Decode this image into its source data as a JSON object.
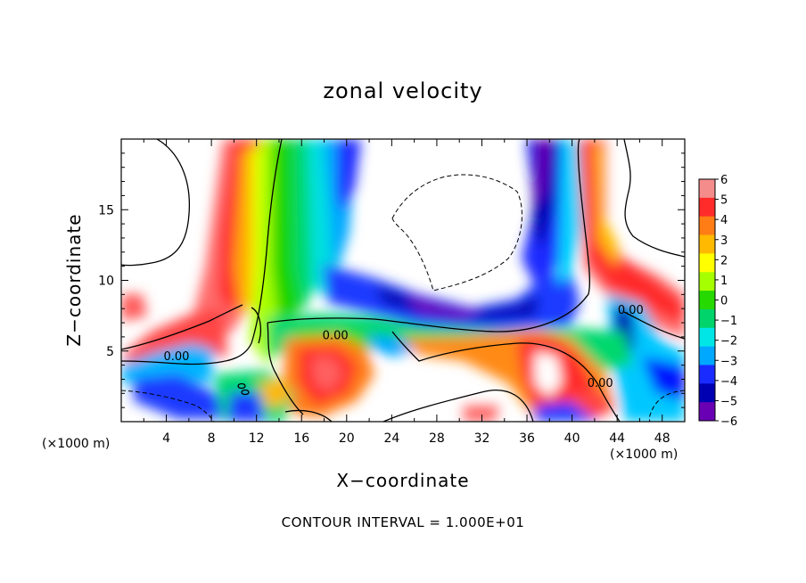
{
  "chart_data": {
    "type": "heatmap",
    "title": "zonal velocity",
    "xlabel": "X−coordinate",
    "ylabel": "Z−coordinate",
    "x_unit": "(×1000 m)",
    "footer": "CONTOUR INTERVAL = 1.000E+01",
    "xlim": [
      0,
      50
    ],
    "ylim": [
      0,
      20
    ],
    "x_ticks": [
      4,
      8,
      12,
      16,
      20,
      24,
      28,
      32,
      36,
      40,
      44,
      48
    ],
    "y_ticks": [
      5,
      10,
      15
    ],
    "x_tick_labels": [
      "4",
      "8",
      "12",
      "16",
      "20",
      "24",
      "28",
      "32",
      "36",
      "40",
      "44",
      "48"
    ],
    "y_tick_labels": [
      "5",
      "10",
      "15"
    ],
    "colorbar": {
      "min": -6,
      "max": 6,
      "labels": [
        "6",
        "5",
        "4",
        "3",
        "2",
        "1",
        "0",
        "−1",
        "−2",
        "−3",
        "−4",
        "−5",
        "−6"
      ],
      "colors": [
        "#f58c8c",
        "#ff2b2b",
        "#ff7d14",
        "#ffb900",
        "#ffff00",
        "#a6ff00",
        "#26d900",
        "#00d46a",
        "#00e6e6",
        "#00a8ff",
        "#1a2bff",
        "#0000b3",
        "#6a00b3"
      ]
    },
    "contour_labels": [
      {
        "text": "0.00",
        "x": 4.9,
        "z": 4.6
      },
      {
        "text": "0.00",
        "x": 19.0,
        "z": 6.1
      },
      {
        "text": "0.00",
        "x": 42.5,
        "z": 2.7
      },
      {
        "text": "0.00",
        "x": 45.2,
        "z": 7.9
      }
    ]
  }
}
